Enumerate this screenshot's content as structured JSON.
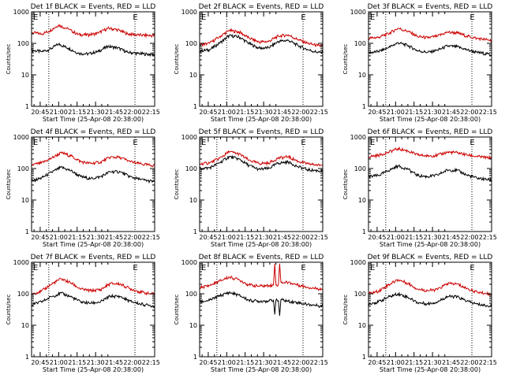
{
  "figure": {
    "xlabel": "Start Time (25-Apr-08 20:38:00)",
    "ylabel": "Counts/sec",
    "x_ticks": [
      "20:45",
      "21:00",
      "21:15",
      "21:30",
      "21:45",
      "22:00",
      "22:15"
    ],
    "y_ticks": [
      "1",
      "10",
      "100",
      "1000"
    ],
    "marker_label": "E"
  },
  "chart_data": [
    {
      "type": "line",
      "title": "Det 1f BLACK = Events, RED = LLD",
      "yscale": "log",
      "ylim": [
        1,
        1000
      ],
      "xlim": [
        "20:38",
        "22:18"
      ],
      "grid": false,
      "annotations": {
        "dotted_vlines": [
          "20:52",
          "22:02"
        ],
        "e_labels": [
          "20:38",
          "21:59"
        ]
      },
      "series": [
        {
          "name": "Events",
          "color": "#000000",
          "x": [
            "20:38",
            "20:46",
            "20:52",
            "21:00",
            "21:08",
            "21:16",
            "21:24",
            "21:32",
            "21:40",
            "21:48",
            "21:56",
            "22:04",
            "22:12",
            "22:18"
          ],
          "y": [
            60,
            55,
            62,
            95,
            70,
            48,
            46,
            55,
            80,
            72,
            52,
            48,
            45,
            44
          ]
        },
        {
          "name": "LLD",
          "color": "#cc0000",
          "x": [
            "20:38",
            "20:46",
            "20:52",
            "21:00",
            "21:08",
            "21:16",
            "21:24",
            "21:32",
            "21:40",
            "21:48",
            "21:56",
            "22:04",
            "22:12",
            "22:18"
          ],
          "y": [
            220,
            200,
            240,
            380,
            280,
            190,
            185,
            210,
            300,
            270,
            200,
            185,
            178,
            175
          ]
        }
      ]
    },
    {
      "type": "line",
      "title": "Det 2f BLACK = Events, RED = LLD",
      "yscale": "log",
      "ylim": [
        1,
        1000
      ],
      "xlim": [
        "20:38",
        "22:18"
      ],
      "grid": false,
      "annotations": {
        "dotted_vlines": [
          "21:00",
          "22:02"
        ],
        "e_labels": [
          "20:38",
          "21:59"
        ]
      },
      "series": [
        {
          "name": "Events",
          "color": "#000000",
          "x": [
            "20:38",
            "20:46",
            "20:54",
            "21:02",
            "21:10",
            "21:18",
            "21:26",
            "21:34",
            "21:42",
            "21:50",
            "21:58",
            "22:06",
            "22:14",
            "22:18"
          ],
          "y": [
            58,
            62,
            100,
            175,
            160,
            100,
            70,
            72,
            115,
            125,
            85,
            62,
            52,
            50
          ]
        },
        {
          "name": "LLD",
          "color": "#cc0000",
          "x": [
            "20:38",
            "20:46",
            "20:54",
            "21:02",
            "21:10",
            "21:18",
            "21:26",
            "21:34",
            "21:42",
            "21:50",
            "21:58",
            "22:06",
            "22:14",
            "22:18"
          ],
          "y": [
            90,
            100,
            160,
            255,
            230,
            150,
            110,
            115,
            170,
            185,
            130,
            100,
            85,
            82
          ]
        }
      ]
    },
    {
      "type": "line",
      "title": "Det 3f BLACK = Events, RED = LLD",
      "yscale": "log",
      "ylim": [
        1,
        1000
      ],
      "xlim": [
        "20:38",
        "22:18"
      ],
      "grid": false,
      "annotations": {
        "dotted_vlines": [
          "20:52",
          "22:02"
        ],
        "e_labels": [
          "20:38",
          "21:59"
        ]
      },
      "series": [
        {
          "name": "Events",
          "color": "#000000",
          "x": [
            "20:38",
            "20:46",
            "20:54",
            "21:02",
            "21:10",
            "21:18",
            "21:26",
            "21:34",
            "21:42",
            "21:50",
            "21:58",
            "22:06",
            "22:14",
            "22:18"
          ],
          "y": [
            50,
            55,
            72,
            105,
            85,
            58,
            52,
            60,
            82,
            78,
            62,
            52,
            46,
            44
          ]
        },
        {
          "name": "LLD",
          "color": "#cc0000",
          "x": [
            "20:38",
            "20:46",
            "20:54",
            "21:02",
            "21:10",
            "21:18",
            "21:26",
            "21:34",
            "21:42",
            "21:50",
            "21:58",
            "22:06",
            "22:14",
            "22:18"
          ],
          "y": [
            145,
            155,
            200,
            300,
            240,
            165,
            150,
            170,
            225,
            215,
            170,
            145,
            130,
            125
          ]
        }
      ]
    },
    {
      "type": "line",
      "title": "Det 4f BLACK = Events, RED = LLD",
      "yscale": "log",
      "ylim": [
        1,
        1000
      ],
      "xlim": [
        "20:38",
        "22:18"
      ],
      "grid": false,
      "annotations": {
        "dotted_vlines": [
          "20:52",
          "22:02"
        ],
        "e_labels": [
          "20:38",
          "21:59"
        ]
      },
      "series": [
        {
          "name": "Events",
          "color": "#000000",
          "x": [
            "20:38",
            "20:46",
            "20:54",
            "21:02",
            "21:10",
            "21:18",
            "21:26",
            "21:34",
            "21:42",
            "21:50",
            "21:58",
            "22:06",
            "22:14",
            "22:18"
          ],
          "y": [
            40,
            50,
            75,
            110,
            85,
            55,
            48,
            55,
            80,
            78,
            55,
            45,
            40,
            38
          ]
        },
        {
          "name": "LLD",
          "color": "#cc0000",
          "x": [
            "20:38",
            "20:46",
            "20:54",
            "21:02",
            "21:10",
            "21:18",
            "21:26",
            "21:34",
            "21:42",
            "21:50",
            "21:58",
            "22:06",
            "22:14",
            "22:18"
          ],
          "y": [
            130,
            150,
            210,
            320,
            250,
            165,
            145,
            160,
            230,
            225,
            165,
            140,
            128,
            125
          ]
        }
      ]
    },
    {
      "type": "line",
      "title": "Det 5f BLACK = Events, RED = LLD",
      "yscale": "log",
      "ylim": [
        1,
        1000
      ],
      "xlim": [
        "20:38",
        "22:18"
      ],
      "grid": false,
      "annotations": {
        "dotted_vlines": [
          "20:52",
          "22:02"
        ],
        "e_labels": [
          "20:38",
          "21:59"
        ]
      },
      "series": [
        {
          "name": "Events",
          "color": "#000000",
          "x": [
            "20:38",
            "20:46",
            "20:54",
            "21:02",
            "21:10",
            "21:18",
            "21:26",
            "21:34",
            "21:42",
            "21:50",
            "21:58",
            "22:06",
            "22:14",
            "22:18"
          ],
          "y": [
            100,
            105,
            150,
            240,
            200,
            125,
            95,
            100,
            150,
            160,
            115,
            92,
            85,
            82
          ]
        },
        {
          "name": "LLD",
          "color": "#cc0000",
          "x": [
            "20:38",
            "20:46",
            "20:54",
            "21:02",
            "21:10",
            "21:18",
            "21:26",
            "21:34",
            "21:42",
            "21:50",
            "21:58",
            "22:06",
            "22:14",
            "22:18"
          ],
          "y": [
            140,
            150,
            210,
            340,
            290,
            185,
            145,
            150,
            215,
            235,
            170,
            140,
            130,
            128
          ]
        }
      ]
    },
    {
      "type": "line",
      "title": "Det 6f BLACK = Events, RED = LLD",
      "yscale": "log",
      "ylim": [
        1,
        1000
      ],
      "xlim": [
        "20:38",
        "22:18"
      ],
      "grid": false,
      "annotations": {
        "dotted_vlines": [
          "20:52",
          "22:02"
        ],
        "e_labels": [
          "20:38",
          "21:59"
        ]
      },
      "series": [
        {
          "name": "Events",
          "color": "#000000",
          "x": [
            "20:38",
            "20:46",
            "20:54",
            "21:02",
            "21:10",
            "21:18",
            "21:26",
            "21:34",
            "21:42",
            "21:50",
            "21:58",
            "22:06",
            "22:14",
            "22:18"
          ],
          "y": [
            55,
            60,
            85,
            120,
            95,
            60,
            55,
            62,
            90,
            88,
            62,
            50,
            45,
            43
          ]
        },
        {
          "name": "LLD",
          "color": "#cc0000",
          "x": [
            "20:38",
            "20:46",
            "20:54",
            "21:02",
            "21:10",
            "21:18",
            "21:26",
            "21:34",
            "21:42",
            "21:50",
            "21:58",
            "22:06",
            "22:14",
            "22:18"
          ],
          "y": [
            240,
            260,
            330,
            430,
            360,
            270,
            250,
            265,
            330,
            320,
            270,
            240,
            225,
            220
          ]
        }
      ]
    },
    {
      "type": "line",
      "title": "Det 7f BLACK = Events, RED = LLD",
      "yscale": "log",
      "ylim": [
        1,
        1000
      ],
      "xlim": [
        "20:38",
        "22:18"
      ],
      "grid": false,
      "annotations": {
        "dotted_vlines": [
          "20:52",
          "22:02"
        ],
        "e_labels": [
          "20:38",
          "21:59"
        ]
      },
      "series": [
        {
          "name": "Events",
          "color": "#000000",
          "x": [
            "20:38",
            "20:46",
            "20:54",
            "21:02",
            "21:10",
            "21:18",
            "21:26",
            "21:34",
            "21:42",
            "21:50",
            "21:58",
            "22:06",
            "22:14",
            "22:18"
          ],
          "y": [
            45,
            55,
            80,
            105,
            80,
            55,
            50,
            55,
            85,
            80,
            58,
            48,
            42,
            40
          ]
        },
        {
          "name": "LLD",
          "color": "#cc0000",
          "x": [
            "20:38",
            "20:46",
            "20:54",
            "21:02",
            "21:10",
            "21:18",
            "21:26",
            "21:34",
            "21:42",
            "21:50",
            "21:58",
            "22:06",
            "22:14",
            "22:18"
          ],
          "y": [
            100,
            120,
            200,
            300,
            220,
            140,
            125,
            135,
            210,
            205,
            145,
            115,
            100,
            98
          ]
        }
      ]
    },
    {
      "type": "line",
      "title": "Det 8f BLACK = Events, RED = LLD",
      "yscale": "log",
      "ylim": [
        1,
        1000
      ],
      "xlim": [
        "20:38",
        "22:18"
      ],
      "grid": false,
      "annotations": {
        "dotted_vlines": [
          "20:52",
          "22:02"
        ],
        "e_labels": [
          "20:38",
          "21:59"
        ]
      },
      "series": [
        {
          "name": "Events",
          "color": "#000000",
          "x": [
            "20:38",
            "20:46",
            "20:54",
            "21:02",
            "21:10",
            "21:18",
            "21:26",
            "21:34",
            "21:38",
            "21:39",
            "21:40",
            "21:42",
            "21:43",
            "21:44",
            "21:50",
            "21:58",
            "22:06",
            "22:14",
            "22:18"
          ],
          "y": [
            55,
            62,
            85,
            110,
            90,
            62,
            58,
            60,
            62,
            22,
            62,
            60,
            20,
            65,
            58,
            52,
            46,
            42,
            40
          ]
        },
        {
          "name": "LLD",
          "color": "#cc0000",
          "x": [
            "20:38",
            "20:46",
            "20:54",
            "21:02",
            "21:10",
            "21:18",
            "21:26",
            "21:34",
            "21:38",
            "21:39",
            "21:40",
            "21:42",
            "21:43",
            "21:44",
            "21:50",
            "21:58",
            "22:06",
            "22:14",
            "22:18"
          ],
          "y": [
            160,
            180,
            250,
            340,
            280,
            190,
            175,
            180,
            190,
            900,
            190,
            195,
            900,
            230,
            230,
            190,
            160,
            145,
            140
          ]
        }
      ]
    },
    {
      "type": "line",
      "title": "Det 9f BLACK = Events, RED = LLD",
      "yscale": "log",
      "ylim": [
        1,
        1000
      ],
      "xlim": [
        "20:38",
        "22:18"
      ],
      "grid": false,
      "annotations": {
        "dotted_vlines": [
          "20:52",
          "22:02"
        ],
        "e_labels": [
          "20:38",
          "21:59"
        ]
      },
      "series": [
        {
          "name": "Events",
          "color": "#000000",
          "x": [
            "20:38",
            "20:46",
            "20:54",
            "21:02",
            "21:10",
            "21:18",
            "21:26",
            "21:34",
            "21:42",
            "21:50",
            "21:58",
            "22:06",
            "22:14",
            "22:18"
          ],
          "y": [
            48,
            55,
            78,
            100,
            78,
            52,
            48,
            55,
            82,
            80,
            58,
            47,
            42,
            40
          ]
        },
        {
          "name": "LLD",
          "color": "#cc0000",
          "x": [
            "20:38",
            "20:46",
            "20:54",
            "21:02",
            "21:10",
            "21:18",
            "21:26",
            "21:34",
            "21:42",
            "21:50",
            "21:58",
            "22:06",
            "22:14",
            "22:18"
          ],
          "y": [
            100,
            120,
            190,
            280,
            215,
            140,
            125,
            135,
            210,
            205,
            145,
            115,
            100,
            98
          ]
        }
      ]
    }
  ]
}
